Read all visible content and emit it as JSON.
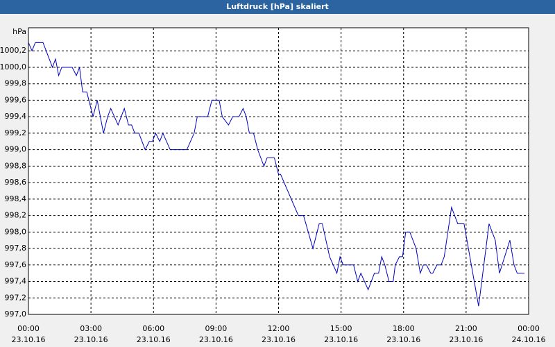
{
  "chart_data": {
    "type": "line",
    "title": "Luftdruck [hPa] skaliert",
    "y_unit": "hPa",
    "x": [
      0,
      0.17,
      0.33,
      0.7,
      1.15,
      1.3,
      1.45,
      1.6,
      2.1,
      2.3,
      2.45,
      2.6,
      2.8,
      3.1,
      3.3,
      3.6,
      3.8,
      3.95,
      4.3,
      4.6,
      4.8,
      4.95,
      5.1,
      5.3,
      5.6,
      5.8,
      5.95,
      6.1,
      6.3,
      6.45,
      6.8,
      7.6,
      7.95,
      8.1,
      8.6,
      8.8,
      9.15,
      9.3,
      9.6,
      9.8,
      10.1,
      10.3,
      10.45,
      10.6,
      10.8,
      11.0,
      11.3,
      11.45,
      11.8,
      12.0,
      12.1,
      12.95,
      13.2,
      13.65,
      13.95,
      14.1,
      14.45,
      14.8,
      14.95,
      15.1,
      15.6,
      15.8,
      15.95,
      16.3,
      16.45,
      16.6,
      16.8,
      16.95,
      17.1,
      17.3,
      17.5,
      17.6,
      17.8,
      17.95,
      18.1,
      18.3,
      18.6,
      18.8,
      18.95,
      19.1,
      19.3,
      19.4,
      19.6,
      19.8,
      19.95,
      20.3,
      20.6,
      20.9,
      21.6,
      22.1,
      22.4,
      22.6,
      23.1,
      23.3,
      23.45,
      23.8
    ],
    "series": [
      {
        "name": "Luftdruck",
        "color": "#0000c0",
        "values": [
          1000.3,
          1000.2,
          1000.3,
          1000.3,
          1000.0,
          1000.1,
          999.9,
          1000.0,
          1000.0,
          999.9,
          1000.0,
          999.7,
          999.7,
          999.4,
          999.6,
          999.2,
          999.4,
          999.5,
          999.3,
          999.5,
          999.3,
          999.3,
          999.2,
          999.2,
          999.0,
          999.1,
          999.1,
          999.2,
          999.1,
          999.2,
          999.0,
          999.0,
          999.2,
          999.4,
          999.4,
          999.6,
          999.6,
          999.4,
          999.3,
          999.4,
          999.4,
          999.5,
          999.4,
          999.2,
          999.2,
          999.0,
          998.8,
          998.9,
          998.9,
          998.7,
          998.7,
          998.2,
          998.2,
          997.8,
          998.1,
          998.1,
          997.7,
          997.5,
          997.7,
          997.6,
          997.6,
          997.4,
          997.5,
          997.3,
          997.4,
          997.5,
          997.5,
          997.7,
          997.6,
          997.4,
          997.4,
          997.6,
          997.7,
          997.7,
          998.0,
          998.0,
          997.8,
          997.5,
          997.6,
          997.6,
          997.5,
          997.5,
          997.6,
          997.6,
          997.7,
          998.3,
          998.1,
          998.1,
          997.1,
          998.1,
          997.9,
          997.5,
          997.9,
          997.6,
          997.5,
          997.5
        ]
      }
    ],
    "xlim": [
      0,
      24
    ],
    "xticks": [
      {
        "value": 0,
        "label": "00:00"
      },
      {
        "value": 3,
        "label": "03:00"
      },
      {
        "value": 6,
        "label": "06:00"
      },
      {
        "value": 9,
        "label": "09:00"
      },
      {
        "value": 12,
        "label": "12:00"
      },
      {
        "value": 15,
        "label": "15:00"
      },
      {
        "value": 18,
        "label": "18:00"
      },
      {
        "value": 21,
        "label": "21:00"
      },
      {
        "value": 24,
        "label": "00:00"
      }
    ],
    "xtick_dates": [
      "23.10.16",
      "23.10.16",
      "23.10.16",
      "23.10.16",
      "23.10.16",
      "23.10.16",
      "23.10.16",
      "23.10.16",
      "24.10.16"
    ],
    "ylim": [
      997.0,
      1000.48
    ],
    "yticks": [
      {
        "value": 997.0,
        "label": "997,0"
      },
      {
        "value": 997.2,
        "label": "997,2"
      },
      {
        "value": 997.4,
        "label": "997,4"
      },
      {
        "value": 997.6,
        "label": "997,6"
      },
      {
        "value": 997.8,
        "label": "997,8"
      },
      {
        "value": 998.0,
        "label": "998,0"
      },
      {
        "value": 998.2,
        "label": "998,2"
      },
      {
        "value": 998.4,
        "label": "998,4"
      },
      {
        "value": 998.6,
        "label": "998,6"
      },
      {
        "value": 998.8,
        "label": "998,8"
      },
      {
        "value": 999.0,
        "label": "999,0"
      },
      {
        "value": 999.2,
        "label": "999,2"
      },
      {
        "value": 999.4,
        "label": "999,4"
      },
      {
        "value": 999.6,
        "label": "999,6"
      },
      {
        "value": 999.8,
        "label": "999,8"
      },
      {
        "value": 1000.0,
        "label": "1000,0"
      },
      {
        "value": 1000.2,
        "label": "1000,2"
      }
    ],
    "grid": true
  }
}
